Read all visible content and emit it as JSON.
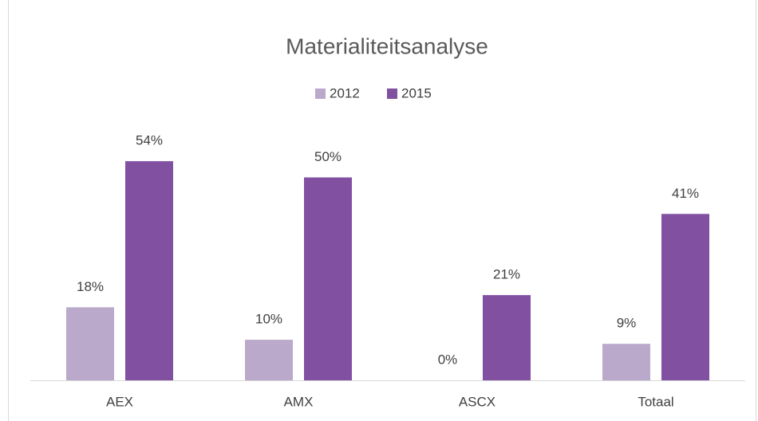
{
  "chart_data": {
    "type": "bar",
    "title": "Materialiteitsanalyse",
    "categories": [
      "AEX",
      "AMX",
      "ASCX",
      "Totaal"
    ],
    "series": [
      {
        "name": "2012",
        "color": "#bba9cb",
        "values": [
          18,
          10,
          0,
          9
        ],
        "value_labels": [
          "18%",
          "10%",
          "0%",
          "9%"
        ]
      },
      {
        "name": "2015",
        "color": "#8150a0",
        "values": [
          54,
          50,
          21,
          41
        ],
        "value_labels": [
          "54%",
          "50%",
          "21%",
          "41%"
        ]
      }
    ],
    "legend": "top"
  }
}
